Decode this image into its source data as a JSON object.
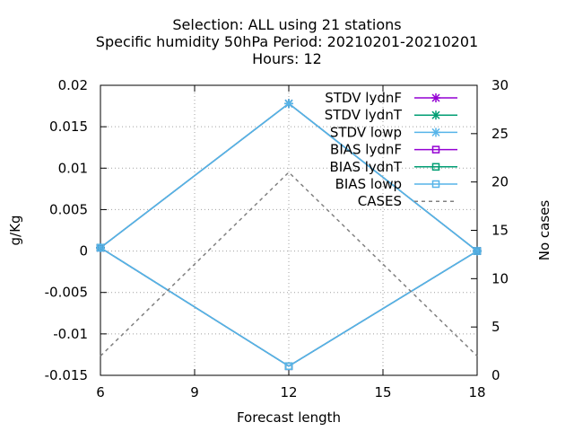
{
  "chart_data": {
    "type": "line",
    "title_lines": [
      "Selection: ALL using    21 stations",
      "Specific humidity 50hPa   Period: 20210201-20210201",
      "Hours:  12"
    ],
    "xlabel": "Forecast length",
    "ylabel": "g/Kg",
    "y2label": "No cases",
    "x_ticks": [
      6,
      9,
      12,
      15,
      18
    ],
    "y_ticks": [
      0.02,
      0.015,
      0.01,
      0.005,
      0,
      -0.005,
      -0.01,
      -0.015
    ],
    "y_tick_labels": [
      "0.02",
      "0.015",
      "0.01",
      "0.005",
      "0",
      "-0.005",
      "-0.01",
      "-0.015"
    ],
    "y2_ticks": [
      30,
      25,
      20,
      15,
      10,
      5,
      0
    ],
    "xlim": [
      6,
      18
    ],
    "ylim": [
      -0.015,
      0.02
    ],
    "y2lim": [
      0,
      30
    ],
    "grid": true,
    "legend_position": "top-right",
    "series": [
      {
        "name": "STDV lydnF",
        "color": "#9400d3",
        "marker": "star",
        "axis": "y",
        "x": [
          6,
          12,
          18
        ],
        "values": [
          0.0004,
          0.0178,
          0.0
        ]
      },
      {
        "name": "STDV lydnT",
        "color": "#009e73",
        "marker": "star",
        "axis": "y",
        "x": [
          6,
          12,
          18
        ],
        "values": [
          0.0004,
          0.0178,
          0.0
        ]
      },
      {
        "name": "STDV lowp",
        "color": "#56b4e9",
        "marker": "star",
        "axis": "y",
        "x": [
          6,
          12,
          18
        ],
        "values": [
          0.0004,
          0.0178,
          0.0
        ]
      },
      {
        "name": "BIAS lydnF",
        "color": "#9400d3",
        "marker": "square",
        "axis": "y",
        "x": [
          6,
          12,
          18
        ],
        "values": [
          0.0004,
          -0.0139,
          0.0
        ]
      },
      {
        "name": "BIAS lydnT",
        "color": "#009e73",
        "marker": "square",
        "axis": "y",
        "x": [
          6,
          12,
          18
        ],
        "values": [
          0.0004,
          -0.0139,
          0.0
        ]
      },
      {
        "name": "BIAS lowp",
        "color": "#56b4e9",
        "marker": "square",
        "axis": "y",
        "x": [
          6,
          12,
          18
        ],
        "values": [
          0.0004,
          -0.0139,
          0.0
        ]
      },
      {
        "name": "CASES",
        "color": "#808080",
        "marker": "none",
        "dashed": true,
        "axis": "y2",
        "x": [
          6,
          12,
          18
        ],
        "values": [
          2,
          21,
          2
        ]
      }
    ]
  }
}
